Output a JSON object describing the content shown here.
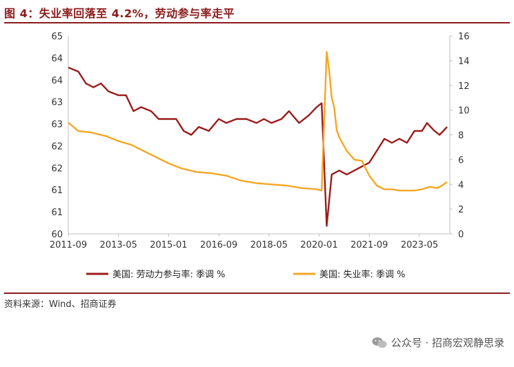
{
  "header": {
    "title": "图 4：失业率回落至 4.2%，劳动参与率走平"
  },
  "footer": {
    "source": "资料来源：Wind、招商证券"
  },
  "watermark": {
    "text": "公众号 · 招商宏观静思录",
    "icon": "wechat-icon"
  },
  "chart_data": {
    "type": "line",
    "x_tick_labels": [
      "2011-09",
      "2013-05",
      "2015-01",
      "2016-09",
      "2018-05",
      "2020-01",
      "2021-09",
      "2023-05"
    ],
    "x_range": [
      "2011-09",
      "2024-04"
    ],
    "y_left": {
      "ticks": [
        "65",
        "64",
        "64",
        "63",
        "63",
        "62",
        "62",
        "61",
        "61",
        "60"
      ],
      "range": [
        60,
        65
      ]
    },
    "y_right": {
      "ticks": [
        "16",
        "14",
        "12",
        "10",
        "8",
        "6",
        "4",
        "2",
        "0"
      ],
      "range": [
        0,
        16
      ]
    },
    "grid": false,
    "legend_position": "bottom",
    "series": [
      {
        "name": "美国: 劳动力参与率: 季调 %",
        "axis": "left",
        "color": "#9B1B1B",
        "points": [
          [
            "2011-09",
            64.2
          ],
          [
            "2012-01",
            64.1
          ],
          [
            "2012-04",
            63.8
          ],
          [
            "2012-07",
            63.7
          ],
          [
            "2012-10",
            63.8
          ],
          [
            "2013-01",
            63.6
          ],
          [
            "2013-05",
            63.5
          ],
          [
            "2013-08",
            63.5
          ],
          [
            "2013-11",
            63.1
          ],
          [
            "2014-02",
            63.2
          ],
          [
            "2014-06",
            63.1
          ],
          [
            "2014-09",
            62.9
          ],
          [
            "2014-12",
            62.9
          ],
          [
            "2015-04",
            62.9
          ],
          [
            "2015-07",
            62.6
          ],
          [
            "2015-10",
            62.5
          ],
          [
            "2016-01",
            62.7
          ],
          [
            "2016-05",
            62.6
          ],
          [
            "2016-09",
            62.9
          ],
          [
            "2016-12",
            62.8
          ],
          [
            "2017-04",
            62.9
          ],
          [
            "2017-08",
            62.9
          ],
          [
            "2017-12",
            62.8
          ],
          [
            "2018-03",
            62.9
          ],
          [
            "2018-06",
            62.8
          ],
          [
            "2018-10",
            62.9
          ],
          [
            "2019-01",
            63.1
          ],
          [
            "2019-05",
            62.8
          ],
          [
            "2019-09",
            63.0
          ],
          [
            "2019-12",
            63.2
          ],
          [
            "2020-02",
            63.3
          ],
          [
            "2020-04",
            60.2
          ],
          [
            "2020-06",
            61.5
          ],
          [
            "2020-09",
            61.6
          ],
          [
            "2020-12",
            61.5
          ],
          [
            "2021-03",
            61.6
          ],
          [
            "2021-06",
            61.7
          ],
          [
            "2021-09",
            61.8
          ],
          [
            "2021-12",
            62.1
          ],
          [
            "2022-03",
            62.4
          ],
          [
            "2022-06",
            62.3
          ],
          [
            "2022-09",
            62.4
          ],
          [
            "2022-12",
            62.3
          ],
          [
            "2023-03",
            62.6
          ],
          [
            "2023-06",
            62.6
          ],
          [
            "2023-08",
            62.8
          ],
          [
            "2023-11",
            62.6
          ],
          [
            "2024-01",
            62.5
          ],
          [
            "2024-04",
            62.7
          ]
        ]
      },
      {
        "name": "美国: 失业率: 季调 %",
        "axis": "right",
        "color": "#F5A623",
        "points": [
          [
            "2011-09",
            9.0
          ],
          [
            "2012-01",
            8.3
          ],
          [
            "2012-06",
            8.2
          ],
          [
            "2012-12",
            7.9
          ],
          [
            "2013-05",
            7.5
          ],
          [
            "2013-10",
            7.2
          ],
          [
            "2014-03",
            6.7
          ],
          [
            "2014-08",
            6.2
          ],
          [
            "2015-01",
            5.7
          ],
          [
            "2015-06",
            5.3
          ],
          [
            "2015-12",
            5.0
          ],
          [
            "2016-06",
            4.9
          ],
          [
            "2016-12",
            4.7
          ],
          [
            "2017-06",
            4.3
          ],
          [
            "2017-12",
            4.1
          ],
          [
            "2018-06",
            4.0
          ],
          [
            "2018-12",
            3.9
          ],
          [
            "2019-06",
            3.7
          ],
          [
            "2019-12",
            3.6
          ],
          [
            "2020-02",
            3.5
          ],
          [
            "2020-04",
            14.7
          ],
          [
            "2020-05",
            13.2
          ],
          [
            "2020-06",
            11.0
          ],
          [
            "2020-07",
            10.2
          ],
          [
            "2020-08",
            8.4
          ],
          [
            "2020-09",
            7.8
          ],
          [
            "2020-12",
            6.7
          ],
          [
            "2021-03",
            6.0
          ],
          [
            "2021-06",
            5.9
          ],
          [
            "2021-09",
            4.7
          ],
          [
            "2021-12",
            3.9
          ],
          [
            "2022-03",
            3.6
          ],
          [
            "2022-06",
            3.6
          ],
          [
            "2022-09",
            3.5
          ],
          [
            "2022-12",
            3.5
          ],
          [
            "2023-03",
            3.5
          ],
          [
            "2023-06",
            3.6
          ],
          [
            "2023-09",
            3.8
          ],
          [
            "2023-12",
            3.7
          ],
          [
            "2024-02",
            3.9
          ],
          [
            "2024-04",
            4.2
          ]
        ]
      }
    ]
  }
}
